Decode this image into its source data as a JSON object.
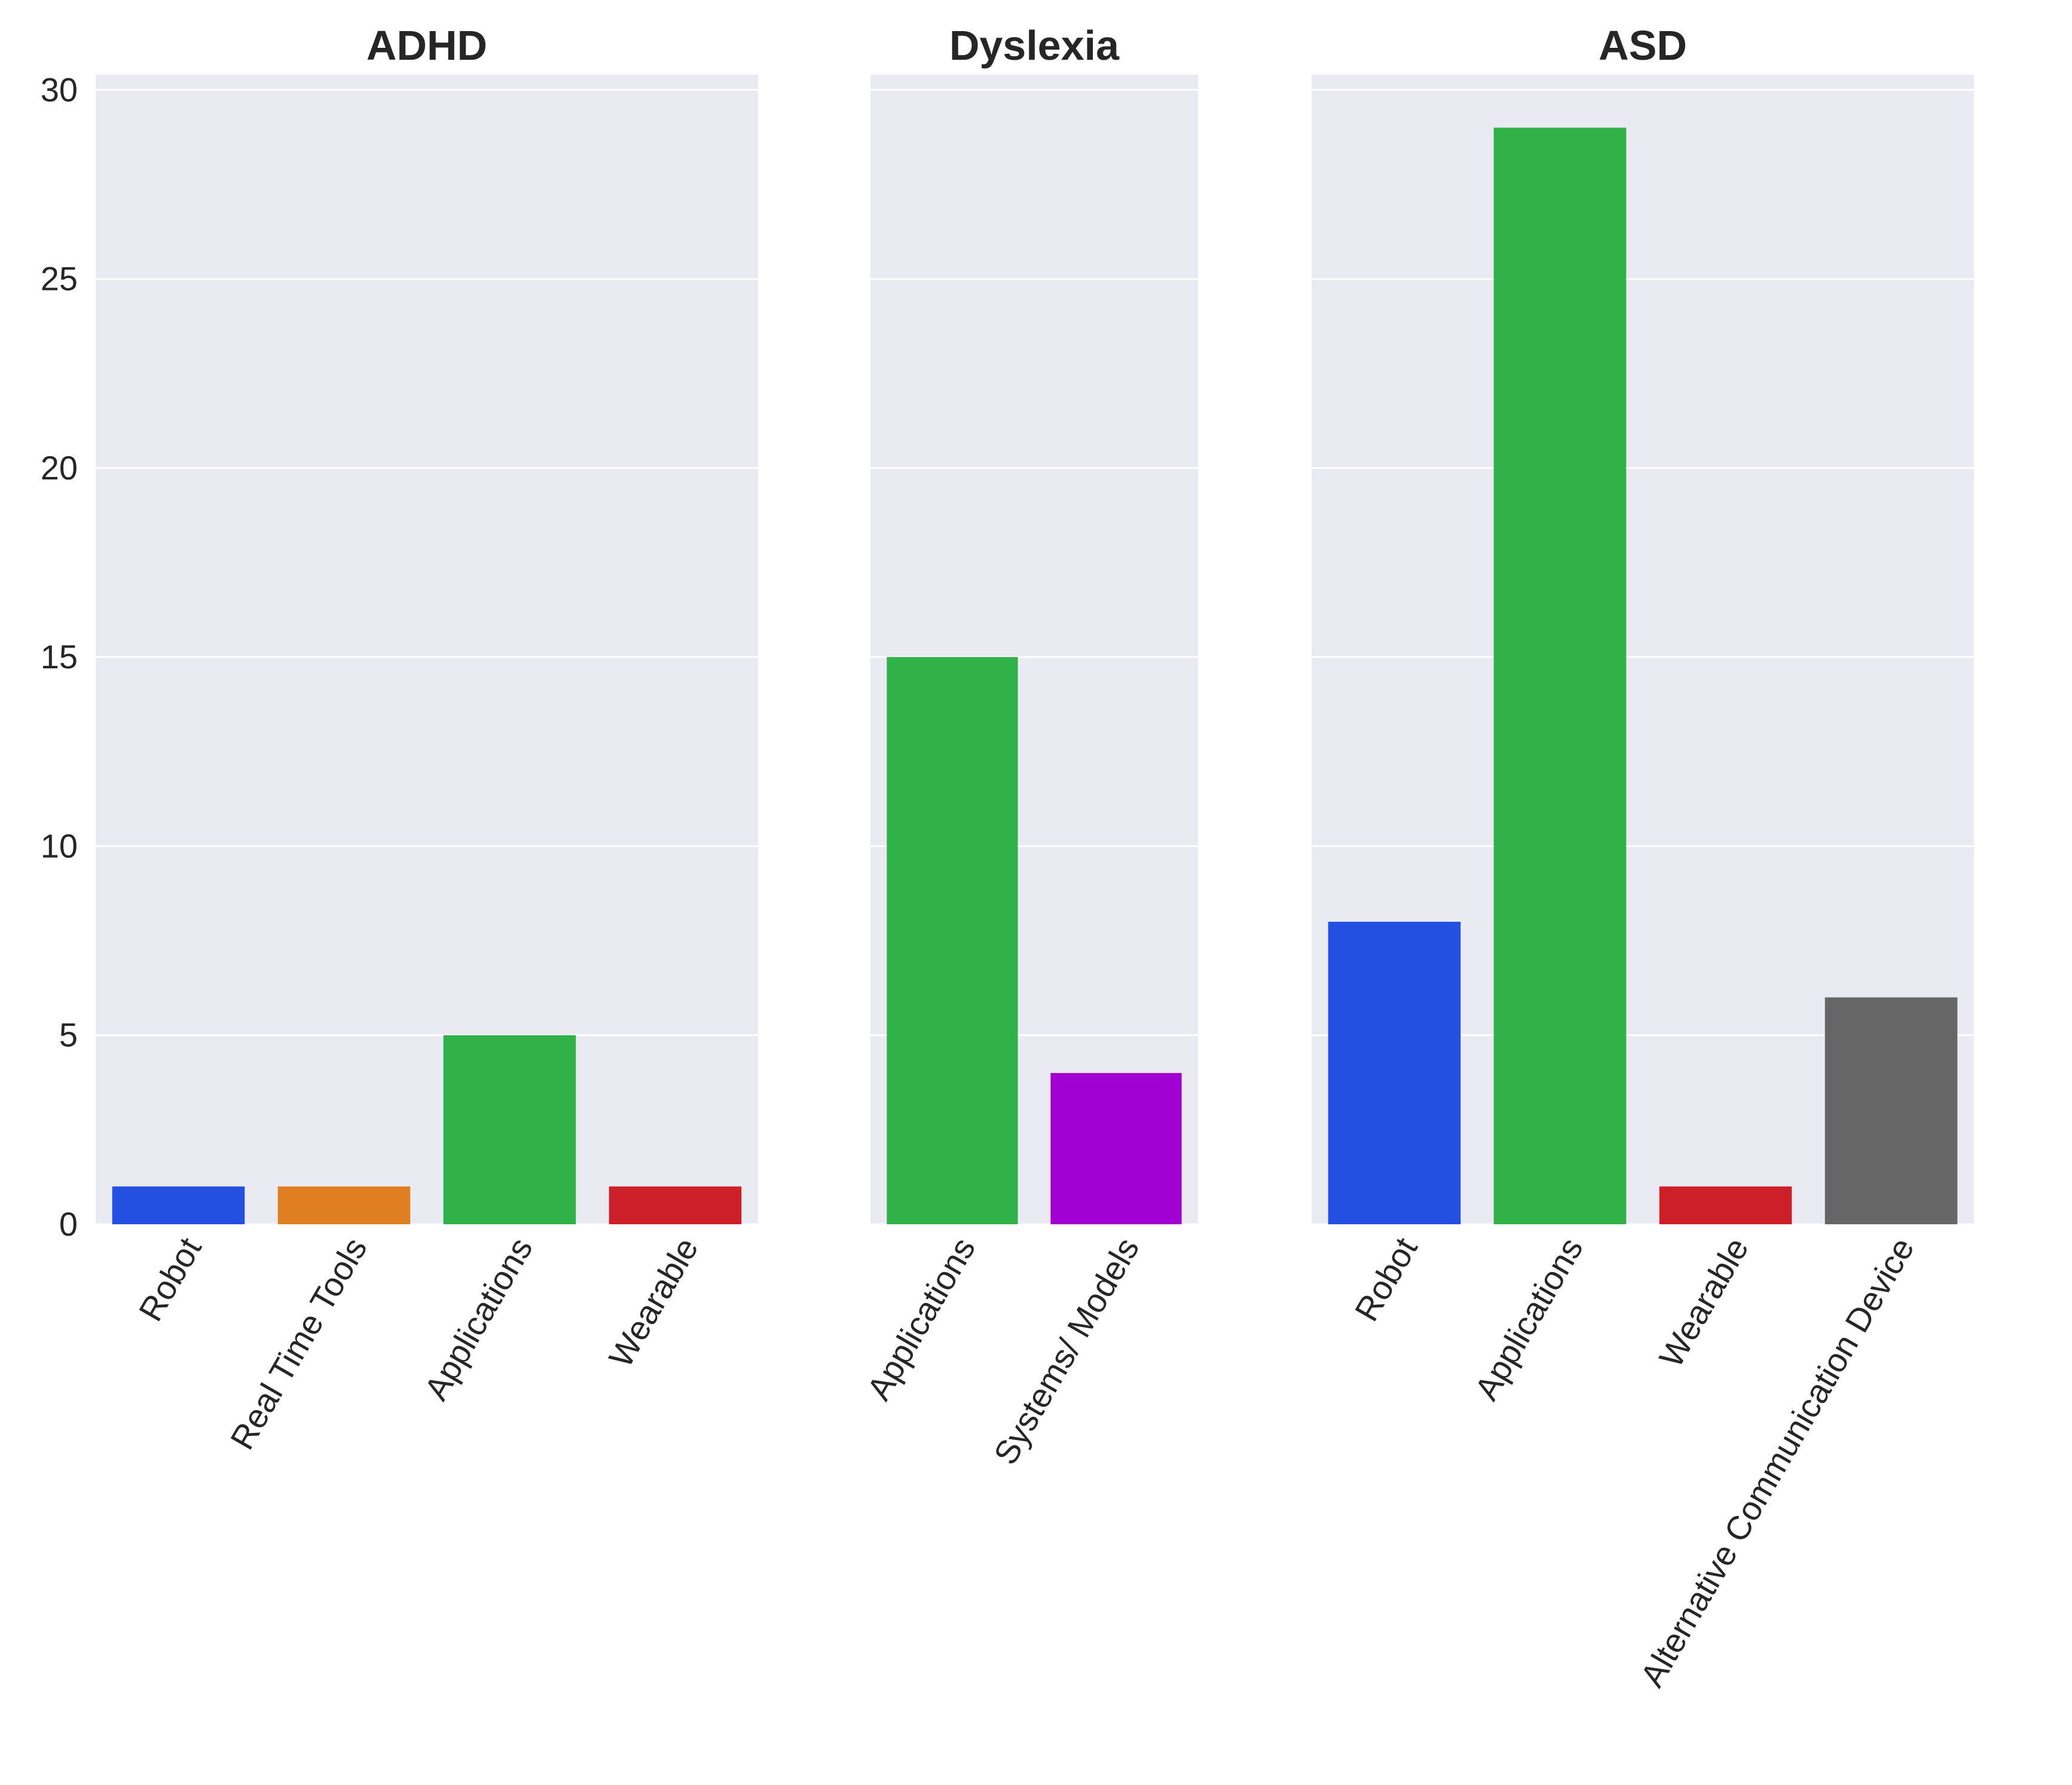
{
  "chart_data": {
    "type": "bar",
    "ylim": [
      0,
      30
    ],
    "yticks": [
      0,
      5,
      10,
      15,
      20,
      25,
      30
    ],
    "grid": true,
    "colors": {
      "background": "#ffffff",
      "panel": "#eaeaf2",
      "grid": "#ffffff",
      "text": "#262626",
      "Robot": "#2350e0",
      "Real Time Tools": "#e07f22",
      "Applications": "#31b248",
      "Wearable": "#cc1f27",
      "Systems/ Models": "#a200d2",
      "Alternative Communication Device": "#666666"
    },
    "panels": [
      {
        "title": "ADHD",
        "categories": [
          "Robot",
          "Real Time Tools",
          "Applications",
          "Wearable"
        ],
        "values": [
          1,
          1,
          5,
          1
        ]
      },
      {
        "title": "Dyslexia",
        "categories": [
          "Applications",
          "Systems/ Models"
        ],
        "values": [
          15,
          4
        ]
      },
      {
        "title": "ASD",
        "categories": [
          "Robot",
          "Applications",
          "Wearable",
          "Alternative Communication Device"
        ],
        "values": [
          8,
          29,
          1,
          6
        ]
      }
    ]
  }
}
